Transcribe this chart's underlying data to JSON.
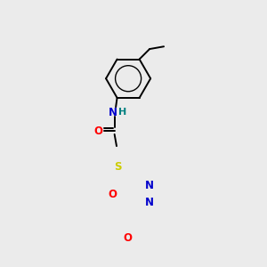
{
  "background_color": "#ebebeb",
  "atom_colors": {
    "C": "#000000",
    "N": "#0000cc",
    "O": "#ff0000",
    "S": "#cccc00",
    "H": "#008080"
  },
  "figsize": [
    3.0,
    3.0
  ],
  "dpi": 100,
  "bond_lw": 1.4,
  "font_size": 8.5
}
